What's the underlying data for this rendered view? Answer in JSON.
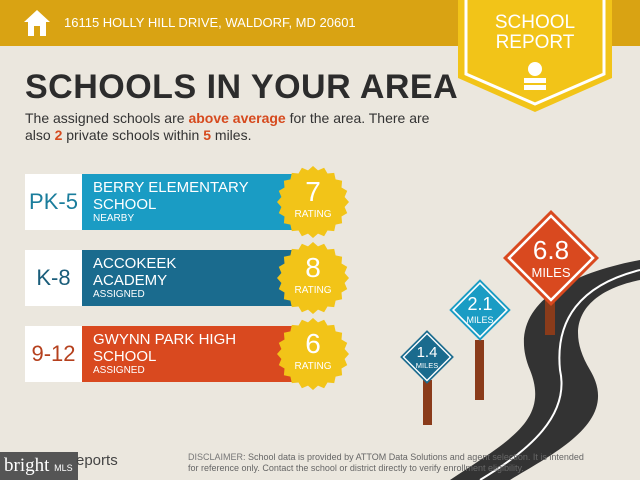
{
  "header": {
    "address": "16115 HOLLY HILL DRIVE, WALDORF, MD 20601",
    "badge_line1": "SCHOOL",
    "badge_line2": "REPORT"
  },
  "title": "SCHOOLS IN YOUR AREA",
  "subtitle": {
    "p1": "The assigned schools are ",
    "hl1": "above average",
    "p2": " for the area. There are also ",
    "hl2": "2",
    "p3": " private schools within ",
    "hl3": "5",
    "p4": " miles."
  },
  "schools": [
    {
      "grade": "PK-5",
      "name1": "BERRY ELEMENTARY",
      "name2": "SCHOOL",
      "type": "NEARBY",
      "rating": "7",
      "rating_label": "RATING",
      "color": "#1a9cc4",
      "grade_color": "#1a7d9c"
    },
    {
      "grade": "K-8",
      "name1": "ACCOKEEK",
      "name2": "ACADEMY",
      "type": "ASSIGNED",
      "rating": "8",
      "rating_label": "RATING",
      "color": "#1a6b8e",
      "grade_color": "#1a5d7a"
    },
    {
      "grade": "9-12",
      "name1": "GWYNN PARK HIGH",
      "name2": "SCHOOL",
      "type": "ASSIGNED",
      "rating": "6",
      "rating_label": "RATING",
      "color": "#d9491f",
      "grade_color": "#b5401d"
    }
  ],
  "signs": [
    {
      "dist": "6.8",
      "unit": "MILES",
      "color": "#d9491f"
    },
    {
      "dist": "2.1",
      "unit": "MILES",
      "color": "#1a9cc4"
    },
    {
      "dist": "1.4",
      "unit": "MILES",
      "color": "#1a6b8e"
    }
  ],
  "footer": {
    "brand": "bright",
    "brand_suffix": "MLS",
    "reports": "eports",
    "disclaimer_label": "DISCLAIMER",
    "disclaimer": ": School data is provided by ATTOM Data Solutions and agent selection. It is intended for reference only. Contact the school or district directly to verify enrollment eligibility."
  },
  "colors": {
    "gold": "#d9a313",
    "ribbon": "#f2c418",
    "road": "#333333"
  }
}
